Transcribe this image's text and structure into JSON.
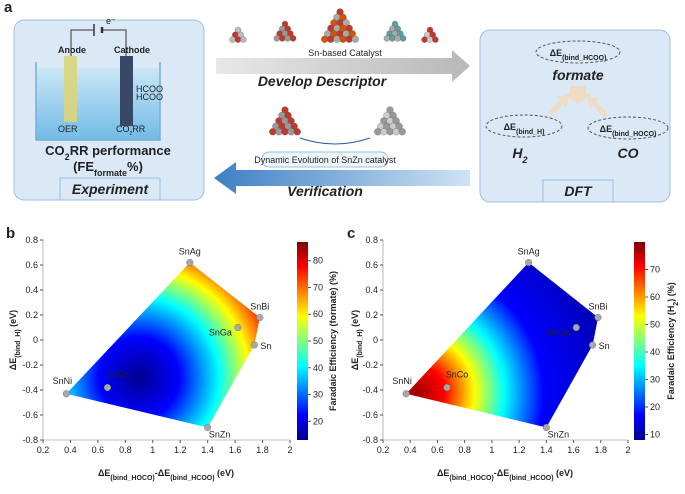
{
  "panel_a": {
    "label": "a",
    "experiment": {
      "anode": "Anode",
      "cathode": "Cathode",
      "electron": "e⁻",
      "products": [
        "HCOO",
        "HCOO"
      ],
      "oer": "OER",
      "co2rr": [
        "CO",
        "2",
        "RR"
      ],
      "performance": [
        "CO",
        "2",
        "RR performance"
      ],
      "fe": [
        "(FE",
        "formate",
        "%)"
      ],
      "title": "Experiment"
    },
    "arrows": {
      "catalyst": "Sn-based Catalyst",
      "descriptor": "Develop Descriptor",
      "evolution": "Dynamic Evolution of SnZn catalyst",
      "verification": "Verification"
    },
    "dft": {
      "hcoo": [
        "ΔE",
        "(bind_HCOO)"
      ],
      "formate": "formate",
      "h": [
        "ΔE",
        "(bind_H)"
      ],
      "hoco": [
        "ΔE",
        "(bind_HOCO)"
      ],
      "h2": [
        "H",
        "2"
      ],
      "co": "CO",
      "title": "DFT"
    }
  },
  "chart_data": [
    {
      "type": "scatter",
      "panel_label": "b",
      "xlabel": [
        "ΔE",
        "(bind_HOCO)",
        "-ΔE",
        "(bind_HCOO)",
        " (eV)"
      ],
      "ylabel": [
        "ΔE",
        "(bind_H)",
        " (eV)"
      ],
      "xlim": [
        0.2,
        2
      ],
      "xticks": [
        0.2,
        0.4,
        0.6,
        0.8,
        1,
        1.2,
        1.4,
        1.6,
        1.8,
        2
      ],
      "ylim": [
        -0.8,
        0.8
      ],
      "yticks": [
        -0.8,
        -0.6,
        -0.4,
        -0.2,
        0,
        0.2,
        0.4,
        0.6,
        0.8
      ],
      "point_labels": [
        "SnAg",
        "SnBi",
        "SnGa",
        "Sn",
        "SnNi",
        "SnCo",
        "SnZn"
      ],
      "x": [
        1.27,
        1.78,
        1.62,
        1.74,
        0.37,
        0.67,
        1.4
      ],
      "y": [
        0.62,
        0.18,
        0.1,
        -0.04,
        -0.43,
        -0.38,
        -0.7
      ],
      "marker_color": "#a8a8a8",
      "colorbar": {
        "label": [
          "Faradaic Efficiency (formate) (%)"
        ],
        "clim": [
          13,
          87
        ],
        "cticks": [
          20,
          30,
          40,
          50,
          60,
          70,
          80
        ],
        "colormap": "jet"
      }
    },
    {
      "type": "scatter",
      "panel_label": "c",
      "xlabel": [
        "ΔE",
        "(bind_HOCO)",
        "-ΔE",
        "(bind_HCOO)",
        " (eV)"
      ],
      "ylabel": [
        "ΔE",
        "(bind_H)",
        " (eV)"
      ],
      "xlim": [
        0.2,
        2
      ],
      "xticks": [
        0.2,
        0.4,
        0.6,
        0.8,
        1,
        1.2,
        1.4,
        1.6,
        1.8,
        2
      ],
      "ylim": [
        -0.8,
        0.8
      ],
      "yticks": [
        -0.8,
        -0.6,
        -0.4,
        -0.2,
        0,
        0.2,
        0.4,
        0.6,
        0.8
      ],
      "point_labels": [
        "SnAg",
        "SnBi",
        "SnGa",
        "Sn",
        "SnNi",
        "SnCo",
        "SnZn"
      ],
      "x": [
        1.27,
        1.78,
        1.62,
        1.74,
        0.37,
        0.67,
        1.4
      ],
      "y": [
        0.62,
        0.18,
        0.1,
        -0.04,
        -0.43,
        -0.38,
        -0.7
      ],
      "marker_color": "#a8a8a8",
      "colorbar": {
        "label": [
          "Faradaic Efficiency (H",
          "2",
          ") (%)"
        ],
        "clim": [
          8,
          80
        ],
        "cticks": [
          10,
          20,
          30,
          40,
          50,
          60,
          70
        ],
        "colormap": "jet"
      }
    }
  ]
}
